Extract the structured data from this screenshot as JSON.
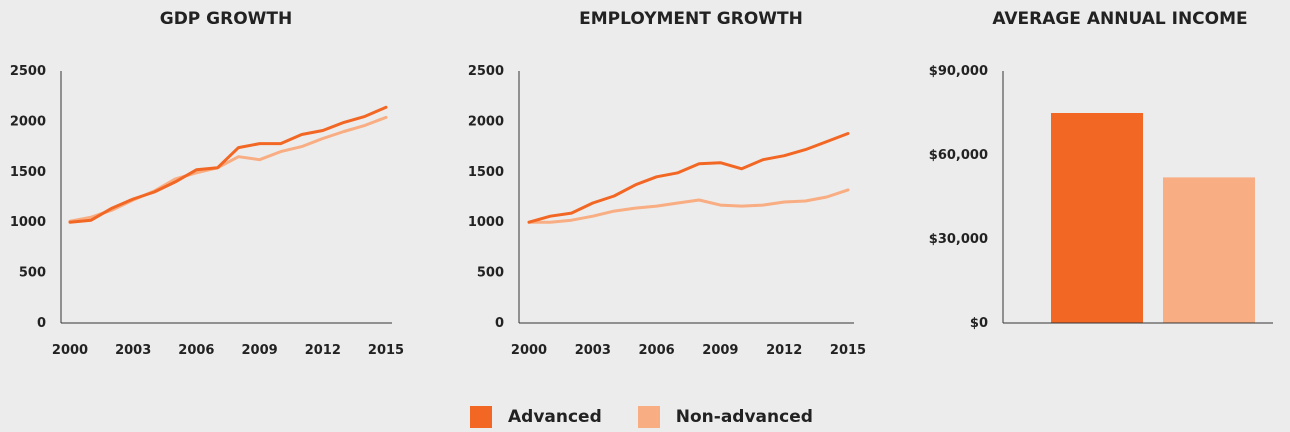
{
  "colors": {
    "advanced": "#f26724",
    "non_advanced": "#f8ad82"
  },
  "legend": {
    "advanced": "Advanced",
    "non_advanced": "Non-advanced"
  },
  "chart_data": [
    {
      "type": "line",
      "title": "GDP GROWTH",
      "ylim": [
        0,
        2500
      ],
      "yticks": [
        0,
        500,
        1000,
        1500,
        2000,
        2500
      ],
      "xticks": [
        2000,
        2003,
        2006,
        2009,
        2012,
        2015
      ],
      "x": [
        2000,
        2001,
        2002,
        2003,
        2004,
        2005,
        2006,
        2007,
        2008,
        2009,
        2010,
        2011,
        2012,
        2013,
        2014,
        2015
      ],
      "series": [
        {
          "name": "Advanced",
          "values": [
            1000,
            1020,
            1140,
            1230,
            1300,
            1400,
            1520,
            1540,
            1740,
            1780,
            1780,
            1870,
            1910,
            1990,
            2050,
            2140
          ]
        },
        {
          "name": "Non-advanced",
          "values": [
            1010,
            1050,
            1120,
            1220,
            1310,
            1430,
            1490,
            1540,
            1650,
            1620,
            1700,
            1750,
            1830,
            1900,
            1960,
            2040
          ]
        }
      ]
    },
    {
      "type": "line",
      "title": "EMPLOYMENT GROWTH",
      "ylim": [
        0,
        2500
      ],
      "yticks": [
        0,
        500,
        1000,
        1500,
        2000,
        2500
      ],
      "xticks": [
        2000,
        2003,
        2006,
        2009,
        2012,
        2015
      ],
      "x": [
        2000,
        2001,
        2002,
        2003,
        2004,
        2005,
        2006,
        2007,
        2008,
        2009,
        2010,
        2011,
        2012,
        2013,
        2014,
        2015
      ],
      "series": [
        {
          "name": "Advanced",
          "values": [
            1000,
            1060,
            1090,
            1190,
            1260,
            1370,
            1450,
            1490,
            1580,
            1590,
            1530,
            1620,
            1660,
            1720,
            1800,
            1880
          ]
        },
        {
          "name": "Non-advanced",
          "values": [
            1000,
            1000,
            1020,
            1060,
            1110,
            1140,
            1160,
            1190,
            1220,
            1170,
            1160,
            1170,
            1200,
            1210,
            1250,
            1320
          ]
        }
      ]
    },
    {
      "type": "bar",
      "title": "AVERAGE ANNUAL INCOME",
      "ylim": [
        0,
        90000
      ],
      "yticks": [
        0,
        30000,
        60000,
        90000
      ],
      "ytick_labels": [
        "$0",
        "$30,000",
        "$60,000",
        "$90,000"
      ],
      "categories": [
        "Advanced",
        "Non-advanced"
      ],
      "values": [
        75000,
        52000
      ]
    }
  ]
}
